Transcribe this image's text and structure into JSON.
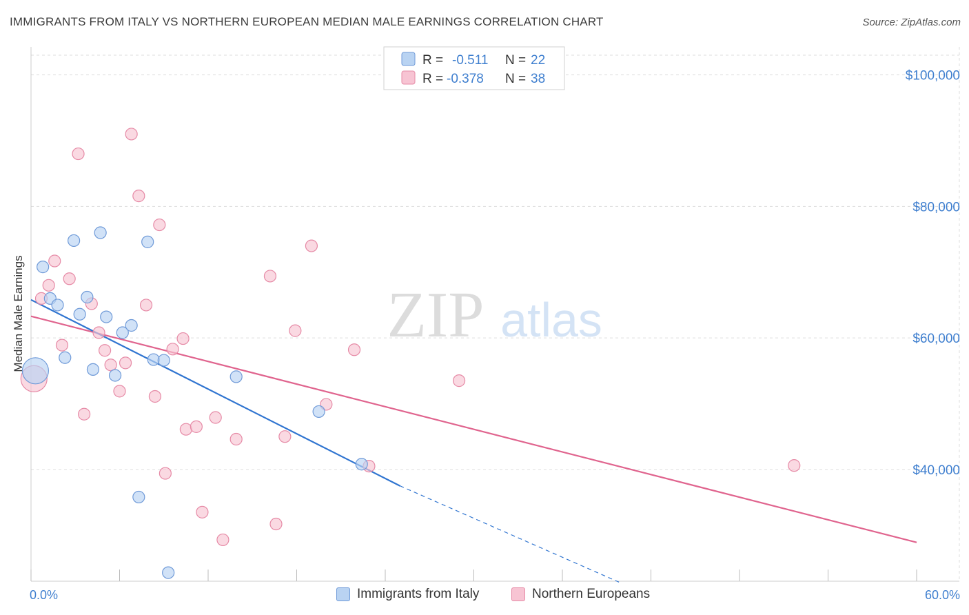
{
  "title": "IMMIGRANTS FROM ITALY VS NORTHERN EUROPEAN MEDIAN MALE EARNINGS CORRELATION CHART",
  "source": "Source: ZipAtlas.com",
  "watermark": {
    "zip": "ZIP",
    "atlas": "atlas"
  },
  "colors": {
    "italy_fill": "#b9d3f2",
    "italy_stroke": "#6f9ad8",
    "italy_line": "#2f74d0",
    "north_fill": "#f7c4d3",
    "north_stroke": "#e68aa6",
    "north_line": "#e0648e",
    "axis_text": "#3f7fcf",
    "grid": "#dddddd"
  },
  "legend": {
    "italy": {
      "r_label": "R =",
      "r_value": "-0.511",
      "n_label": "N =",
      "n_value": "22"
    },
    "north": {
      "r_label": "R =",
      "r_value": "-0.378",
      "n_label": "N =",
      "n_value": "38"
    }
  },
  "chart_data": {
    "type": "scatter",
    "xlabel": "",
    "ylabel": "Median Male Earnings",
    "xlim": [
      0,
      60
    ],
    "ylim": [
      23000,
      103000
    ],
    "x_tick_labels": [
      "0.0%",
      "60.0%"
    ],
    "y_ticks": [
      40000,
      60000,
      80000,
      100000
    ],
    "y_tick_labels": [
      "$40,000",
      "$60,000",
      "$80,000",
      "$100,000"
    ],
    "grid": true,
    "legend_position": "top-center",
    "series": [
      {
        "name": "Immigrants from Italy",
        "points": [
          {
            "x": 0.3,
            "y": 55000,
            "big": true
          },
          {
            "x": 0.8,
            "y": 70800
          },
          {
            "x": 1.3,
            "y": 66000
          },
          {
            "x": 1.8,
            "y": 65000
          },
          {
            "x": 2.3,
            "y": 57000
          },
          {
            "x": 2.9,
            "y": 74800
          },
          {
            "x": 3.3,
            "y": 63600
          },
          {
            "x": 3.8,
            "y": 66200
          },
          {
            "x": 4.2,
            "y": 55200
          },
          {
            "x": 4.7,
            "y": 76000
          },
          {
            "x": 5.1,
            "y": 63200
          },
          {
            "x": 5.7,
            "y": 54300
          },
          {
            "x": 6.2,
            "y": 60800
          },
          {
            "x": 6.8,
            "y": 61900
          },
          {
            "x": 7.3,
            "y": 35800
          },
          {
            "x": 7.9,
            "y": 74600
          },
          {
            "x": 8.3,
            "y": 56700
          },
          {
            "x": 9.0,
            "y": 56600
          },
          {
            "x": 9.3,
            "y": 24300
          },
          {
            "x": 13.9,
            "y": 54100
          },
          {
            "x": 19.5,
            "y": 48800
          },
          {
            "x": 22.4,
            "y": 40800
          }
        ],
        "trend": {
          "x0": 0,
          "y0": 65800,
          "x1": 25,
          "y1": 37500,
          "dash_x1": 40,
          "dash_y1": 22700
        }
      },
      {
        "name": "Northern Europeans",
        "points": [
          {
            "x": 0.2,
            "y": 53800,
            "big": true
          },
          {
            "x": 0.7,
            "y": 66000
          },
          {
            "x": 1.2,
            "y": 68000
          },
          {
            "x": 1.6,
            "y": 71700
          },
          {
            "x": 2.1,
            "y": 58900
          },
          {
            "x": 2.6,
            "y": 69000
          },
          {
            "x": 3.2,
            "y": 88000
          },
          {
            "x": 3.6,
            "y": 48400
          },
          {
            "x": 4.1,
            "y": 65200
          },
          {
            "x": 4.6,
            "y": 60800
          },
          {
            "x": 5.0,
            "y": 58100
          },
          {
            "x": 5.4,
            "y": 55900
          },
          {
            "x": 6.0,
            "y": 51900
          },
          {
            "x": 6.4,
            "y": 56200
          },
          {
            "x": 6.8,
            "y": 91000
          },
          {
            "x": 7.3,
            "y": 81600
          },
          {
            "x": 7.8,
            "y": 65000
          },
          {
            "x": 8.4,
            "y": 51100
          },
          {
            "x": 8.7,
            "y": 77200
          },
          {
            "x": 9.1,
            "y": 39400
          },
          {
            "x": 9.6,
            "y": 58300
          },
          {
            "x": 10.3,
            "y": 59900
          },
          {
            "x": 10.5,
            "y": 46100
          },
          {
            "x": 11.2,
            "y": 46500
          },
          {
            "x": 11.6,
            "y": 33500
          },
          {
            "x": 12.5,
            "y": 47900
          },
          {
            "x": 13.0,
            "y": 29300
          },
          {
            "x": 13.9,
            "y": 44600
          },
          {
            "x": 16.2,
            "y": 69400
          },
          {
            "x": 16.6,
            "y": 31700
          },
          {
            "x": 17.2,
            "y": 45000
          },
          {
            "x": 17.9,
            "y": 61100
          },
          {
            "x": 19.0,
            "y": 74000
          },
          {
            "x": 20.0,
            "y": 49900
          },
          {
            "x": 21.9,
            "y": 58200
          },
          {
            "x": 22.9,
            "y": 40500
          },
          {
            "x": 29.0,
            "y": 53500
          },
          {
            "x": 51.7,
            "y": 40600
          }
        ],
        "trend": {
          "x0": 0,
          "y0": 63300,
          "x1": 60,
          "y1": 28900
        }
      }
    ]
  }
}
